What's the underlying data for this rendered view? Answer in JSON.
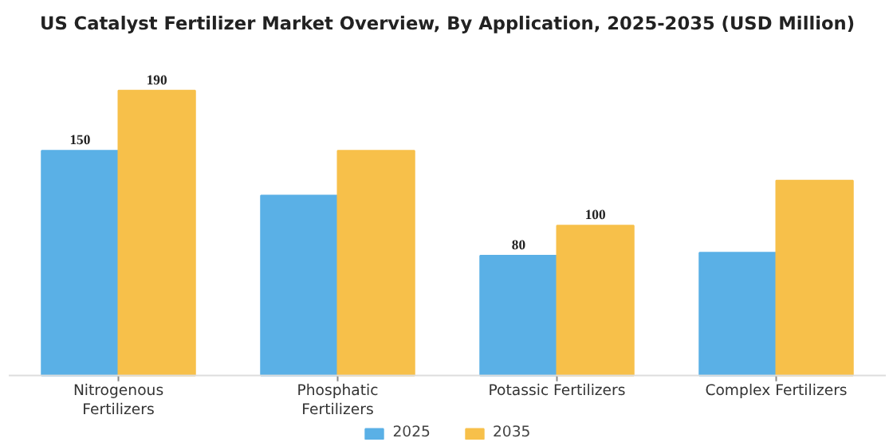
{
  "chart_data": {
    "type": "bar",
    "title": "US Catalyst Fertilizer Market Overview, By Application, 2025-2035 (USD Million)",
    "categories": [
      "Nitrogenous Fertilizers",
      "Phosphatic Fertilizers",
      "Potassic Fertilizers",
      "Complex Fertilizers"
    ],
    "series": [
      {
        "name": "2025",
        "color": "#5ab0e6",
        "values": [
          150,
          120,
          80,
          82
        ],
        "value_labels": [
          "150",
          null,
          "80",
          null
        ]
      },
      {
        "name": "2035",
        "color": "#f7c04a",
        "values": [
          190,
          150,
          100,
          130
        ],
        "value_labels": [
          "190",
          null,
          "100",
          null
        ]
      }
    ],
    "legend": "bottom"
  }
}
